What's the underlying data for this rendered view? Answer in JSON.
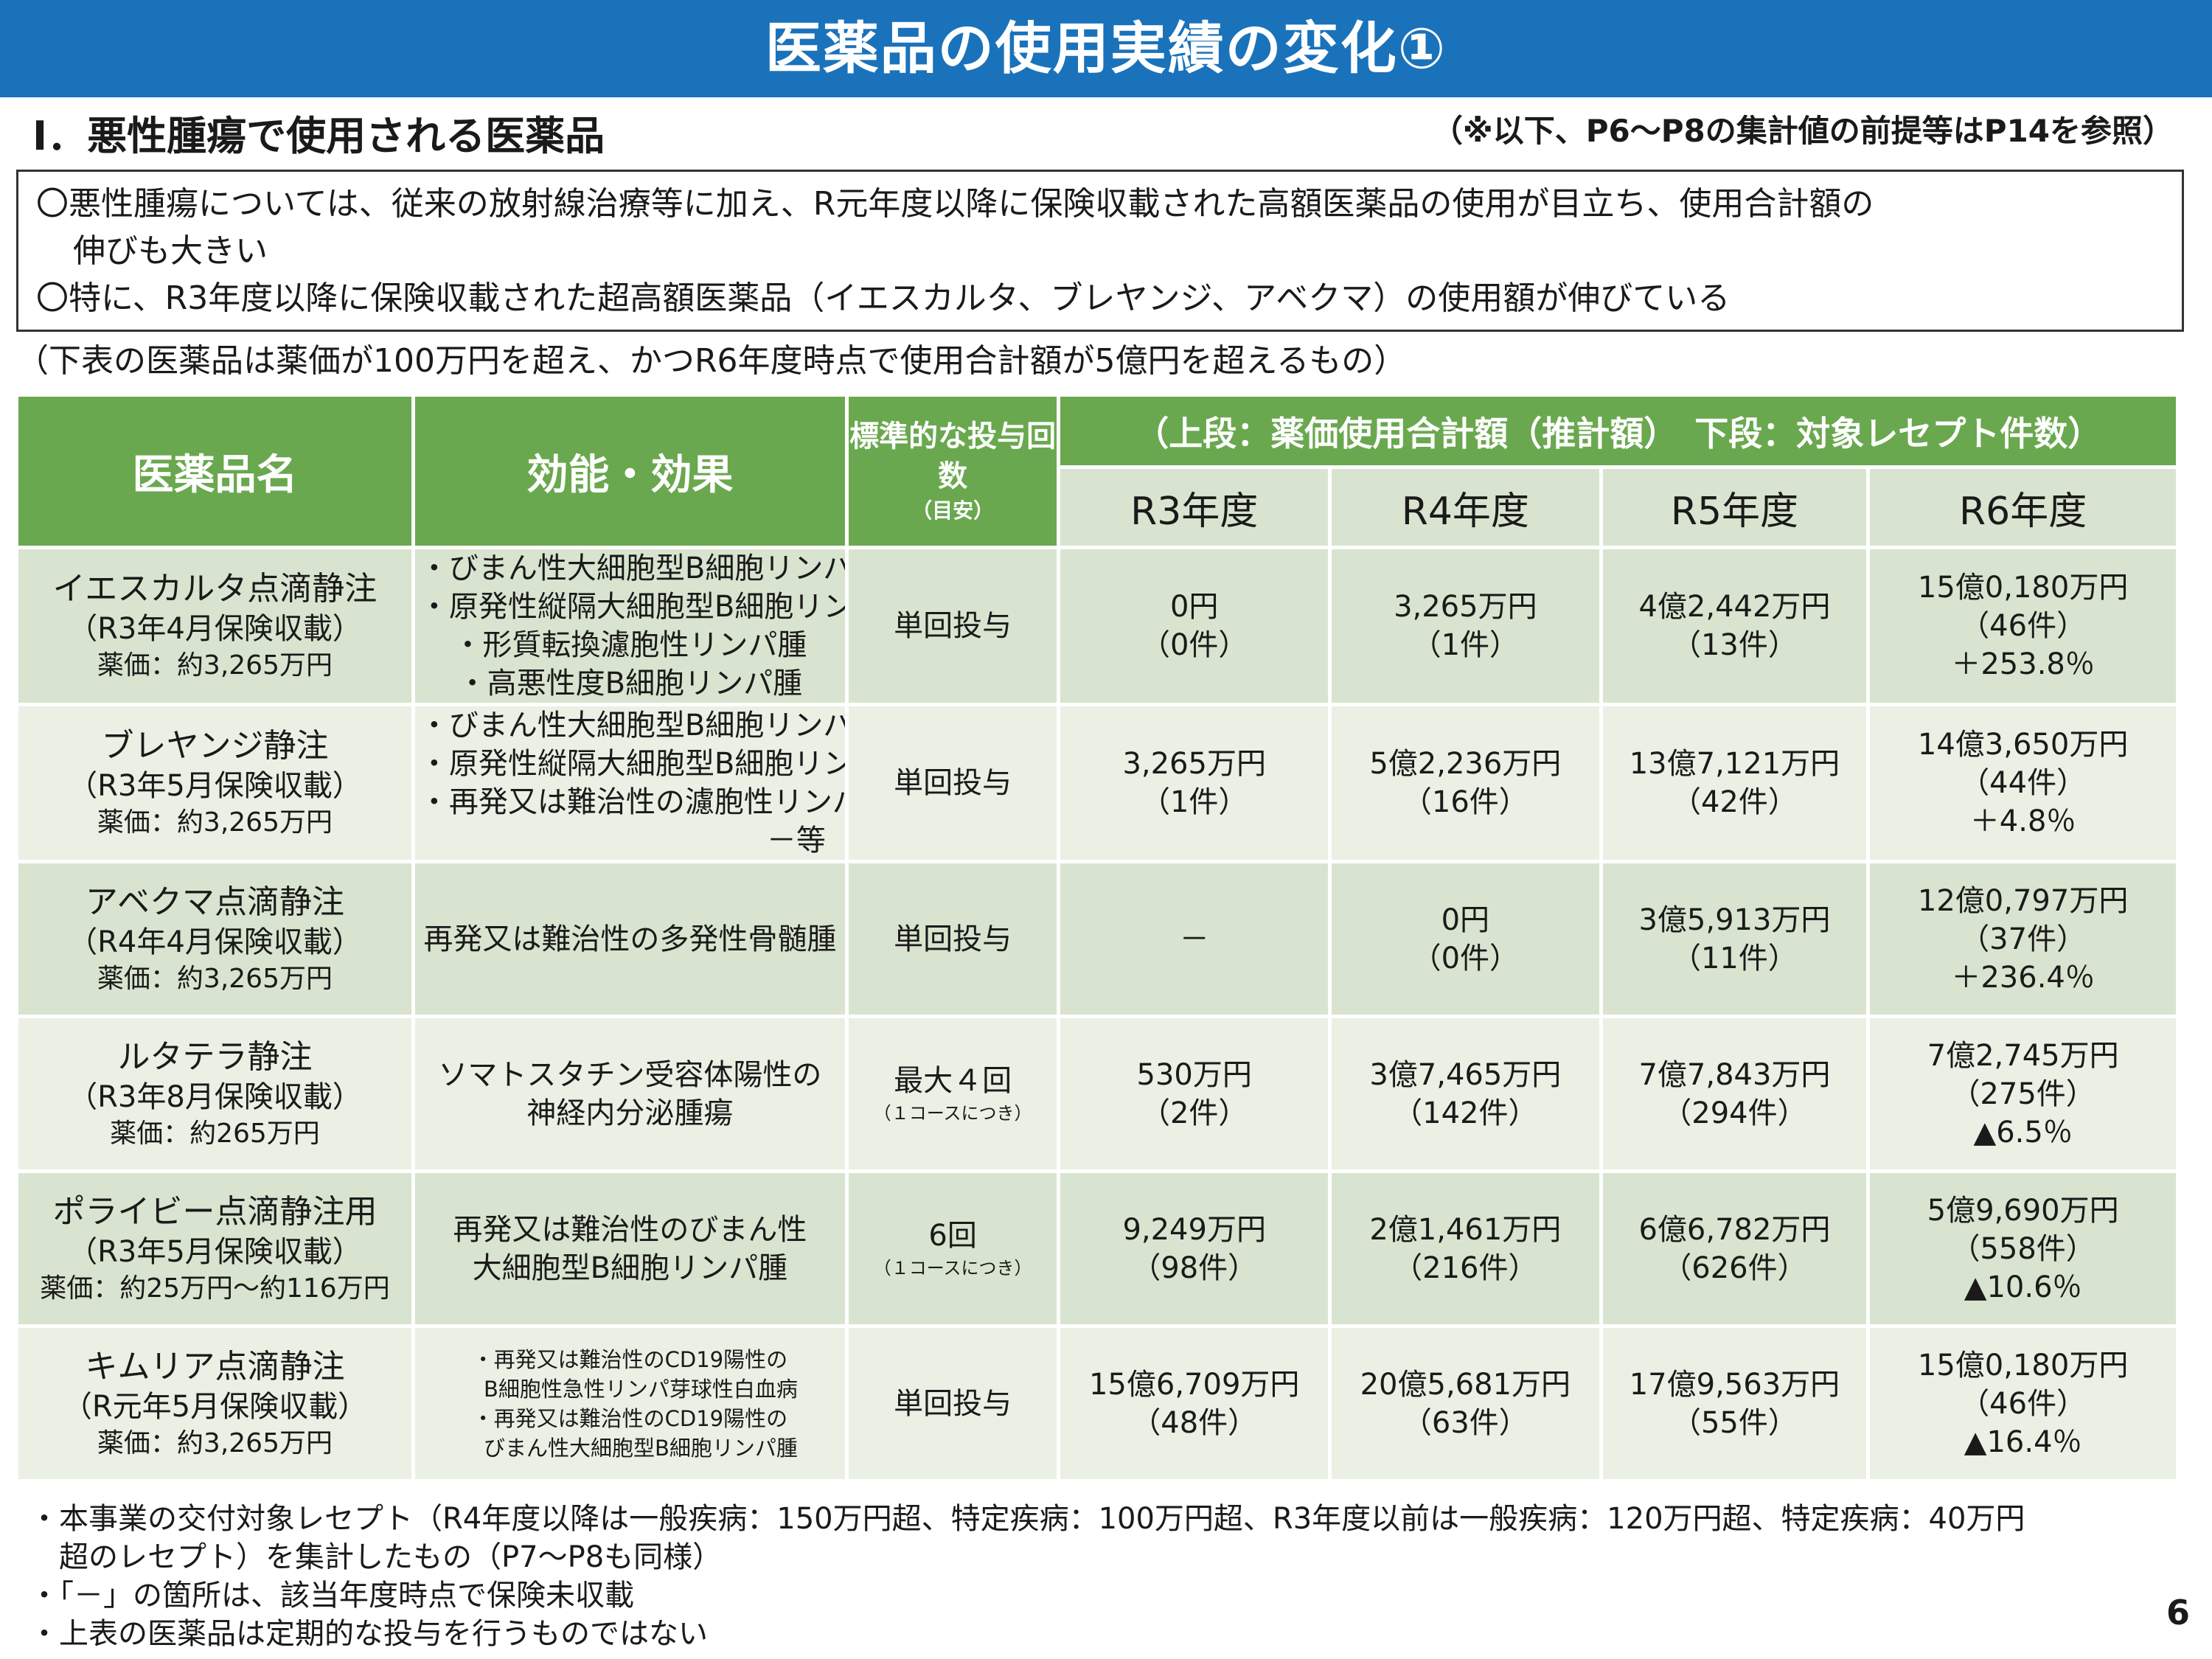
{
  "title": "医薬品の使用実績の変化①",
  "section_title": "Ⅰ．悪性腫瘍で使用される医薬品",
  "note_right": "（※以下、P6～P8の集計値の前提等はP14を参照）",
  "summary": {
    "line1": "〇悪性腫瘍については、従来の放射線治療等に加え、R元年度以降に保険収載された高額医薬品の使用が目立ち、使用合計額の",
    "line1_cont": "伸びも大きい",
    "line2": "〇特に、R3年度以降に保険収載された超高額医薬品（イエスカルタ、ブレヤンジ、アベクマ）の使用額が伸びている"
  },
  "criteria": "（下表の医薬品は薬価が100万円を超え、かつR6年度時点で使用合計額が5億円を超えるもの）",
  "table": {
    "headers": {
      "name": "医薬品名",
      "effect": "効能・効果",
      "dose": "標準的な投与回数",
      "dose_sub": "（目安）",
      "span": "（上段：薬価使用合計額（推計額）　下段：対象レセプト件数）",
      "years": [
        "R3年度",
        "R4年度",
        "R5年度",
        "R6年度"
      ]
    },
    "rows": [
      {
        "name": "イエスカルタ点滴静注",
        "listed": "（R3年4月保険収載）",
        "price": "薬価：約3,265万円",
        "effects": [
          "・びまん性大細胞型B細胞リンパ腫",
          "・原発性縦隔大細胞型B細胞リンパ腫",
          "・形質転換濾胞性リンパ腫",
          "・高悪性度B細胞リンパ腫"
        ],
        "dose": "単回投与",
        "dose_sub": "",
        "years": [
          {
            "amount": "0円",
            "count": "（0件）",
            "change": ""
          },
          {
            "amount": "3,265万円",
            "count": "（1件）",
            "change": ""
          },
          {
            "amount": "4億2,442万円",
            "count": "（13件）",
            "change": ""
          },
          {
            "amount": "15億0,180万円",
            "count": "（46件）",
            "change": "＋253.8％"
          }
        ]
      },
      {
        "name": "ブレヤンジ静注",
        "listed": "（R3年5月保険収載）",
        "price": "薬価：約3,265万円",
        "effects": [
          "・びまん性大細胞型B細胞リンパ腫",
          "・原発性縦隔大細胞型B細胞リンパ腫",
          "・再発又は難治性の濾胞性リンパ腫"
        ],
        "effects_etc": "－等",
        "dose": "単回投与",
        "dose_sub": "",
        "years": [
          {
            "amount": "3,265万円",
            "count": "（1件）",
            "change": ""
          },
          {
            "amount": "5億2,236万円",
            "count": "（16件）",
            "change": ""
          },
          {
            "amount": "13億7,121万円",
            "count": "（42件）",
            "change": ""
          },
          {
            "amount": "14億3,650万円",
            "count": "（44件）",
            "change": "＋4.8％"
          }
        ]
      },
      {
        "name": "アベクマ点滴静注",
        "listed": "（R4年4月保険収載）",
        "price": "薬価：約3,265万円",
        "effect_text": "再発又は難治性の多発性骨髄腫",
        "dose": "単回投与",
        "dose_sub": "",
        "years": [
          {
            "amount": "－",
            "count": "",
            "change": ""
          },
          {
            "amount": "0円",
            "count": "（0件）",
            "change": ""
          },
          {
            "amount": "3億5,913万円",
            "count": "（11件）",
            "change": ""
          },
          {
            "amount": "12億0,797万円",
            "count": "（37件）",
            "change": "＋236.4％"
          }
        ]
      },
      {
        "name": "ルタテラ静注",
        "listed": "（R3年8月保険収載）",
        "price": "薬価：約265万円",
        "effect_text": "ソマトスタチン受容体陽性の神経内分泌腫瘍",
        "effect_text_l1": "ソマトスタチン受容体陽性の",
        "effect_text_l2": "神経内分泌腫瘍",
        "dose": "最大４回",
        "dose_sub": "（１コースにつき）",
        "years": [
          {
            "amount": "530万円",
            "count": "（2件）",
            "change": ""
          },
          {
            "amount": "3億7,465万円",
            "count": "（142件）",
            "change": ""
          },
          {
            "amount": "7億7,843万円",
            "count": "（294件）",
            "change": ""
          },
          {
            "amount": "7億2,745万円",
            "count": "（275件）",
            "change": "▲6.5％"
          }
        ]
      },
      {
        "name": "ポライビー点滴静注用",
        "listed": "（R3年5月保険収載）",
        "price": "薬価：約25万円～約116万円",
        "effect_text_l1": "再発又は難治性のびまん性",
        "effect_text_l2": "大細胞型B細胞リンパ腫",
        "dose": "6回",
        "dose_sub": "（１コースにつき）",
        "years": [
          {
            "amount": "9,249万円",
            "count": "（98件）",
            "change": ""
          },
          {
            "amount": "2億1,461万円",
            "count": "（216件）",
            "change": ""
          },
          {
            "amount": "6億6,782万円",
            "count": "（626件）",
            "change": ""
          },
          {
            "amount": "5億9,690万円",
            "count": "（558件）",
            "change": "▲10.6％"
          }
        ]
      },
      {
        "name": "キムリア点滴静注",
        "listed": "（R元年5月保険収載）",
        "price": "薬価：約3,265万円",
        "effects": [
          "・再発又は難治性のCD19陽性の",
          "　B細胞性急性リンパ芽球性白血病",
          "・再発又は難治性のCD19陽性の",
          "　びまん性大細胞型B細胞リンパ腫"
        ],
        "dose": "単回投与",
        "dose_sub": "",
        "years": [
          {
            "amount": "15億6,709万円",
            "count": "（48件）",
            "change": ""
          },
          {
            "amount": "20億5,681万円",
            "count": "（63件）",
            "change": ""
          },
          {
            "amount": "17億9,563万円",
            "count": "（55件）",
            "change": ""
          },
          {
            "amount": "15億0,180万円",
            "count": "（46件）",
            "change": "▲16.4％"
          }
        ]
      }
    ]
  },
  "footnotes": {
    "fn1": "・本事業の交付対象レセプト（R4年度以降は一般疾病：150万円超、特定疾病：100万円超、R3年度以前は一般疾病：120万円超、特定疾病：40万円",
    "fn1_cont": "超のレセプト）を集計したもの（P7～P8も同様）",
    "fn2": "・「－」の箇所は、該当年度時点で保険未収載",
    "fn3": "・上表の医薬品は定期的な投与を行うものではない"
  },
  "page_number": "6"
}
